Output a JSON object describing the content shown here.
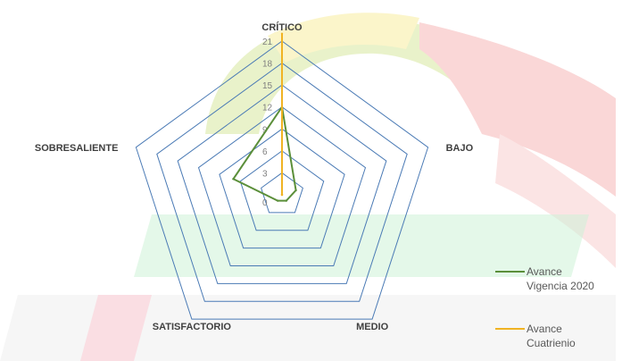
{
  "chart_data": {
    "type": "radar",
    "axes": [
      "CRÍTICO",
      "BAJO",
      "MEDIO",
      "SATISFACTORIO",
      "SOBRESALIENTE"
    ],
    "rlim": [
      0,
      21
    ],
    "ticks": [
      3,
      6,
      9,
      12,
      15,
      18,
      21
    ],
    "grid": true,
    "grid_color": "#4a7ab5",
    "legend_position": "right",
    "series": [
      {
        "name_lines": [
          "Avance",
          "Vigencia 2020"
        ],
        "color": "#5b8f3a",
        "values": [
          12,
          2,
          1,
          1,
          7
        ]
      },
      {
        "name_lines": [
          "Avance",
          "Cuatrienio"
        ],
        "color": "#f0b323",
        "values": [
          22,
          0,
          0,
          0,
          0
        ]
      }
    ]
  }
}
